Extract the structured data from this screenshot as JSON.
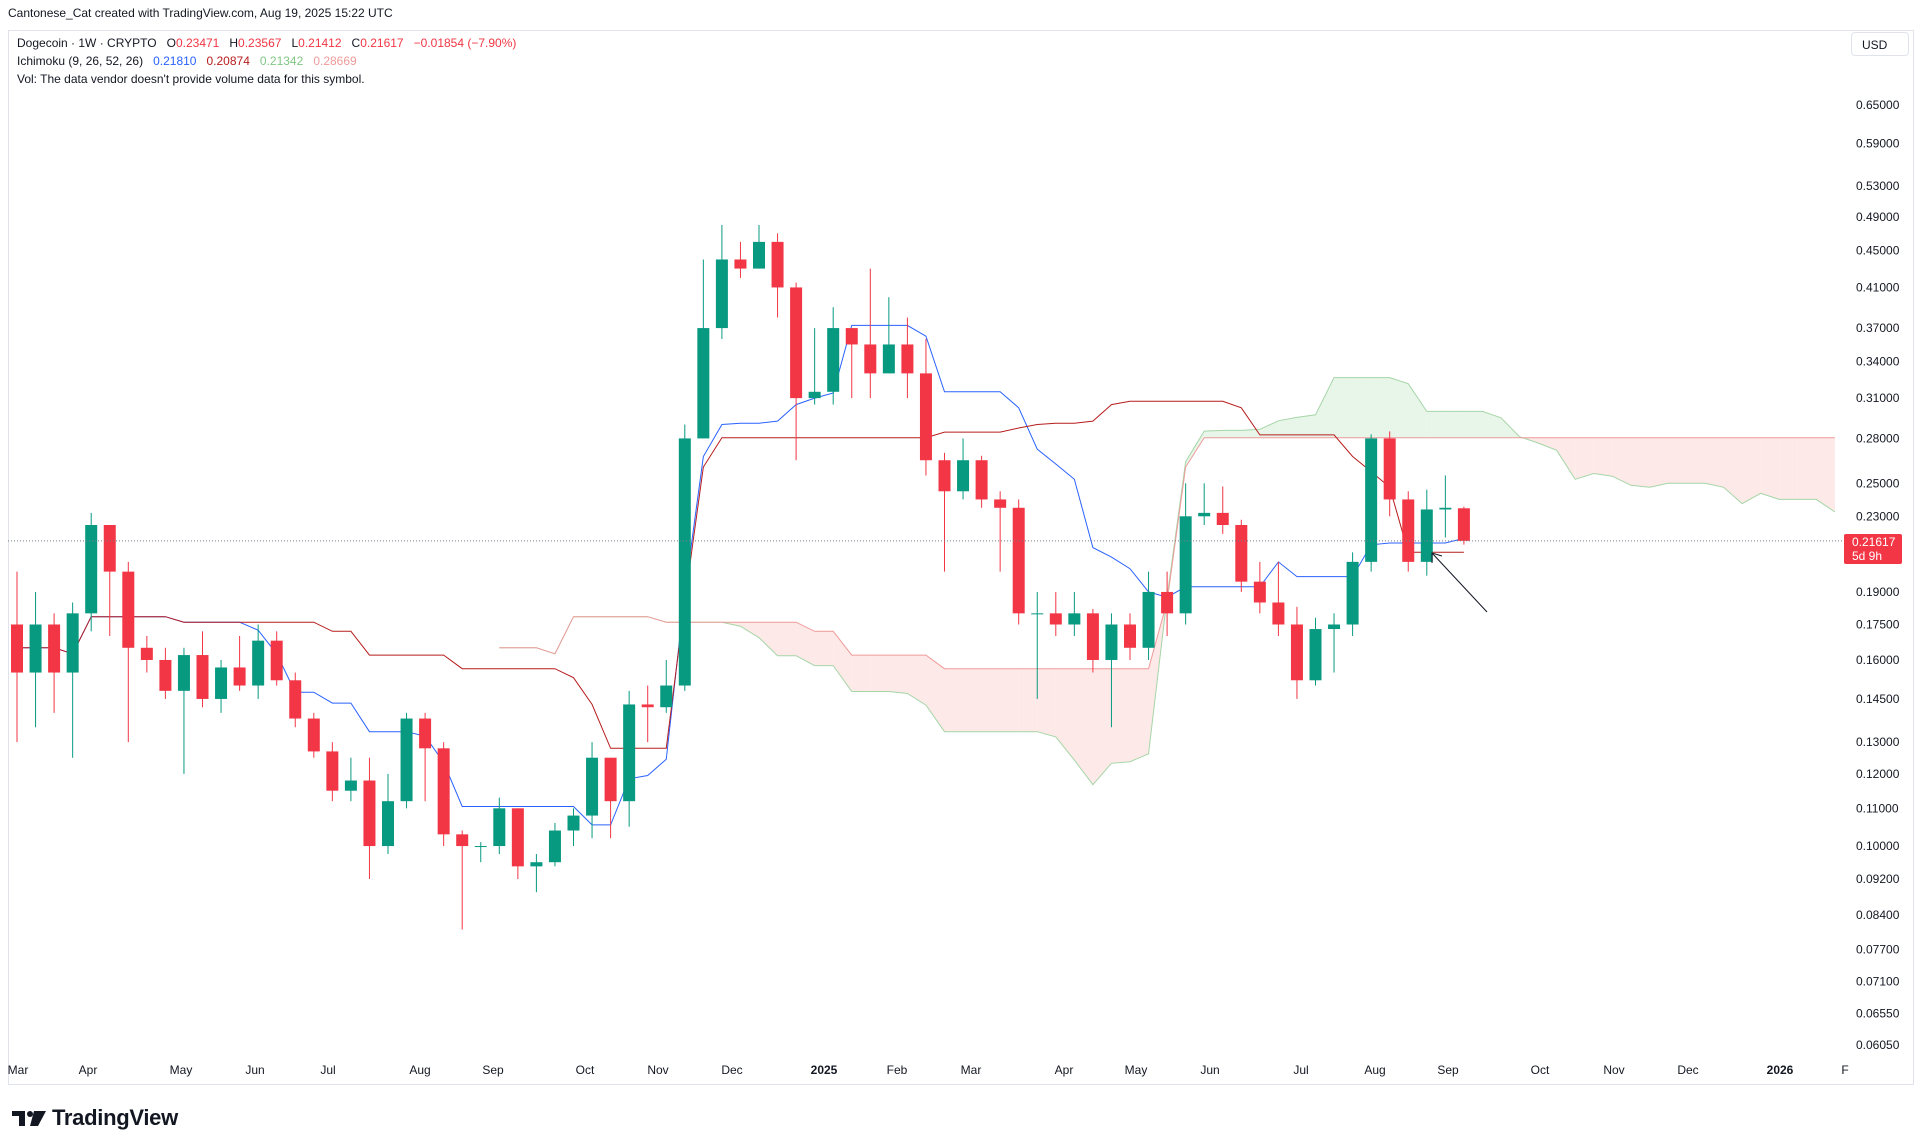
{
  "header": {
    "attribution": "Cantonese_Cat created with TradingView.com, Aug 19, 2025 15:22 UTC"
  },
  "legend": {
    "symbol": "Dogecoin · 1W · CRYPTO",
    "open_label": "O",
    "open": "0.23471",
    "high_label": "H",
    "high": "0.23567",
    "low_label": "L",
    "low": "0.21412",
    "close_label": "C",
    "close": "0.21617",
    "change": "−0.01854 (−7.90%)",
    "ichimoku_label": "Ichimoku (9, 26, 52, 26)",
    "ichimoku_values": [
      "0.21810",
      "0.20874",
      "0.21342",
      "0.28669"
    ],
    "volume_note": "Vol: The data vendor doesn't provide volume data for this symbol."
  },
  "currency_button": "USD",
  "price_tag": {
    "price": "0.21617",
    "countdown": "5d 9h"
  },
  "branding": {
    "logo_text": "TradingView"
  },
  "colors": {
    "up": "#089981",
    "down": "#f23645",
    "tenkan": "#2962ff",
    "kijun": "#b71c1c",
    "cloud_bull": "#e8f5e9",
    "cloud_bear": "#fde9e7",
    "span_a": "#a5d6a7",
    "span_b": "#ef9a9a"
  },
  "chart_data": {
    "type": "candlestick",
    "scale": "log",
    "y_ticks": [
      "0.65000",
      "0.59000",
      "0.53000",
      "0.49000",
      "0.45000",
      "0.41000",
      "0.37000",
      "0.34000",
      "0.31000",
      "0.28000",
      "0.25000",
      "0.23000",
      "0.19000",
      "0.17500",
      "0.16000",
      "0.14500",
      "0.13000",
      "0.12000",
      "0.11000",
      "0.10000",
      "0.09200",
      "0.08400",
      "0.07700",
      "0.07100",
      "0.06550",
      "0.06050"
    ],
    "x_ticks": [
      "Mar",
      "Apr",
      "May",
      "Jun",
      "Jul",
      "Aug",
      "Sep",
      "Oct",
      "Nov",
      "Dec",
      "2025",
      "Feb",
      "Mar",
      "Apr",
      "May",
      "Jun",
      "Jul",
      "Aug",
      "Sep",
      "Oct",
      "Nov",
      "Dec",
      "2026",
      "F"
    ],
    "last_price": 0.21617,
    "candles": [
      [
        0.175,
        0.155,
        0.2,
        0.13
      ],
      [
        0.155,
        0.175,
        0.19,
        0.135
      ],
      [
        0.175,
        0.155,
        0.18,
        0.14
      ],
      [
        0.155,
        0.18,
        0.185,
        0.125
      ],
      [
        0.18,
        0.225,
        0.232,
        0.172
      ],
      [
        0.225,
        0.2,
        0.225,
        0.17
      ],
      [
        0.2,
        0.165,
        0.205,
        0.13
      ],
      [
        0.165,
        0.16,
        0.17,
        0.155
      ],
      [
        0.16,
        0.148,
        0.165,
        0.145
      ],
      [
        0.148,
        0.162,
        0.165,
        0.12
      ],
      [
        0.162,
        0.145,
        0.172,
        0.142
      ],
      [
        0.145,
        0.157,
        0.16,
        0.14
      ],
      [
        0.157,
        0.15,
        0.17,
        0.148
      ],
      [
        0.15,
        0.168,
        0.175,
        0.145
      ],
      [
        0.168,
        0.152,
        0.172,
        0.15
      ],
      [
        0.152,
        0.138,
        0.155,
        0.135
      ],
      [
        0.138,
        0.127,
        0.14,
        0.125
      ],
      [
        0.127,
        0.115,
        0.13,
        0.112
      ],
      [
        0.115,
        0.118,
        0.125,
        0.112
      ],
      [
        0.118,
        0.1,
        0.125,
        0.092
      ],
      [
        0.1,
        0.112,
        0.12,
        0.098
      ],
      [
        0.112,
        0.138,
        0.14,
        0.11
      ],
      [
        0.138,
        0.128,
        0.14,
        0.112
      ],
      [
        0.128,
        0.103,
        0.13,
        0.1
      ],
      [
        0.103,
        0.1,
        0.104,
        0.081
      ],
      [
        0.1,
        0.1,
        0.101,
        0.096
      ],
      [
        0.1,
        0.11,
        0.113,
        0.098
      ],
      [
        0.11,
        0.095,
        0.11,
        0.092
      ],
      [
        0.095,
        0.096,
        0.098,
        0.089
      ],
      [
        0.096,
        0.104,
        0.106,
        0.095
      ],
      [
        0.104,
        0.108,
        0.11,
        0.1
      ],
      [
        0.108,
        0.125,
        0.13,
        0.102
      ],
      [
        0.125,
        0.112,
        0.125,
        0.102
      ],
      [
        0.112,
        0.143,
        0.148,
        0.105
      ],
      [
        0.143,
        0.142,
        0.15,
        0.13
      ],
      [
        0.142,
        0.15,
        0.16,
        0.14
      ],
      [
        0.15,
        0.28,
        0.29,
        0.148
      ],
      [
        0.28,
        0.37,
        0.44,
        0.28
      ],
      [
        0.37,
        0.44,
        0.48,
        0.36
      ],
      [
        0.44,
        0.43,
        0.46,
        0.42
      ],
      [
        0.43,
        0.46,
        0.48,
        0.43
      ],
      [
        0.46,
        0.41,
        0.47,
        0.38
      ],
      [
        0.41,
        0.31,
        0.415,
        0.265
      ],
      [
        0.31,
        0.315,
        0.37,
        0.305
      ],
      [
        0.315,
        0.37,
        0.39,
        0.305
      ],
      [
        0.37,
        0.355,
        0.37,
        0.31
      ],
      [
        0.355,
        0.33,
        0.43,
        0.31
      ],
      [
        0.33,
        0.355,
        0.4,
        0.33
      ],
      [
        0.355,
        0.33,
        0.38,
        0.31
      ],
      [
        0.33,
        0.265,
        0.36,
        0.255
      ],
      [
        0.265,
        0.245,
        0.27,
        0.2
      ],
      [
        0.245,
        0.265,
        0.28,
        0.24
      ],
      [
        0.265,
        0.24,
        0.268,
        0.235
      ],
      [
        0.24,
        0.235,
        0.245,
        0.2
      ],
      [
        0.235,
        0.18,
        0.24,
        0.175
      ],
      [
        0.18,
        0.18,
        0.19,
        0.145
      ],
      [
        0.18,
        0.175,
        0.19,
        0.17
      ],
      [
        0.175,
        0.18,
        0.19,
        0.17
      ],
      [
        0.18,
        0.16,
        0.182,
        0.155
      ],
      [
        0.16,
        0.175,
        0.18,
        0.135
      ],
      [
        0.175,
        0.165,
        0.18,
        0.16
      ],
      [
        0.165,
        0.19,
        0.2,
        0.16
      ],
      [
        0.19,
        0.18,
        0.2,
        0.17
      ],
      [
        0.18,
        0.23,
        0.25,
        0.175
      ],
      [
        0.23,
        0.232,
        0.25,
        0.225
      ],
      [
        0.232,
        0.225,
        0.248,
        0.22
      ],
      [
        0.225,
        0.195,
        0.228,
        0.19
      ],
      [
        0.195,
        0.185,
        0.205,
        0.18
      ],
      [
        0.185,
        0.175,
        0.205,
        0.17
      ],
      [
        0.175,
        0.152,
        0.183,
        0.145
      ],
      [
        0.152,
        0.173,
        0.178,
        0.15
      ],
      [
        0.173,
        0.175,
        0.18,
        0.155
      ],
      [
        0.175,
        0.205,
        0.21,
        0.17
      ],
      [
        0.205,
        0.28,
        0.283,
        0.2
      ],
      [
        0.28,
        0.24,
        0.285,
        0.23
      ],
      [
        0.24,
        0.205,
        0.245,
        0.2
      ],
      [
        0.205,
        0.234,
        0.246,
        0.198
      ],
      [
        0.234,
        0.235,
        0.255,
        0.218
      ],
      [
        0.23471,
        0.21617,
        0.23567,
        0.21412
      ]
    ]
  }
}
